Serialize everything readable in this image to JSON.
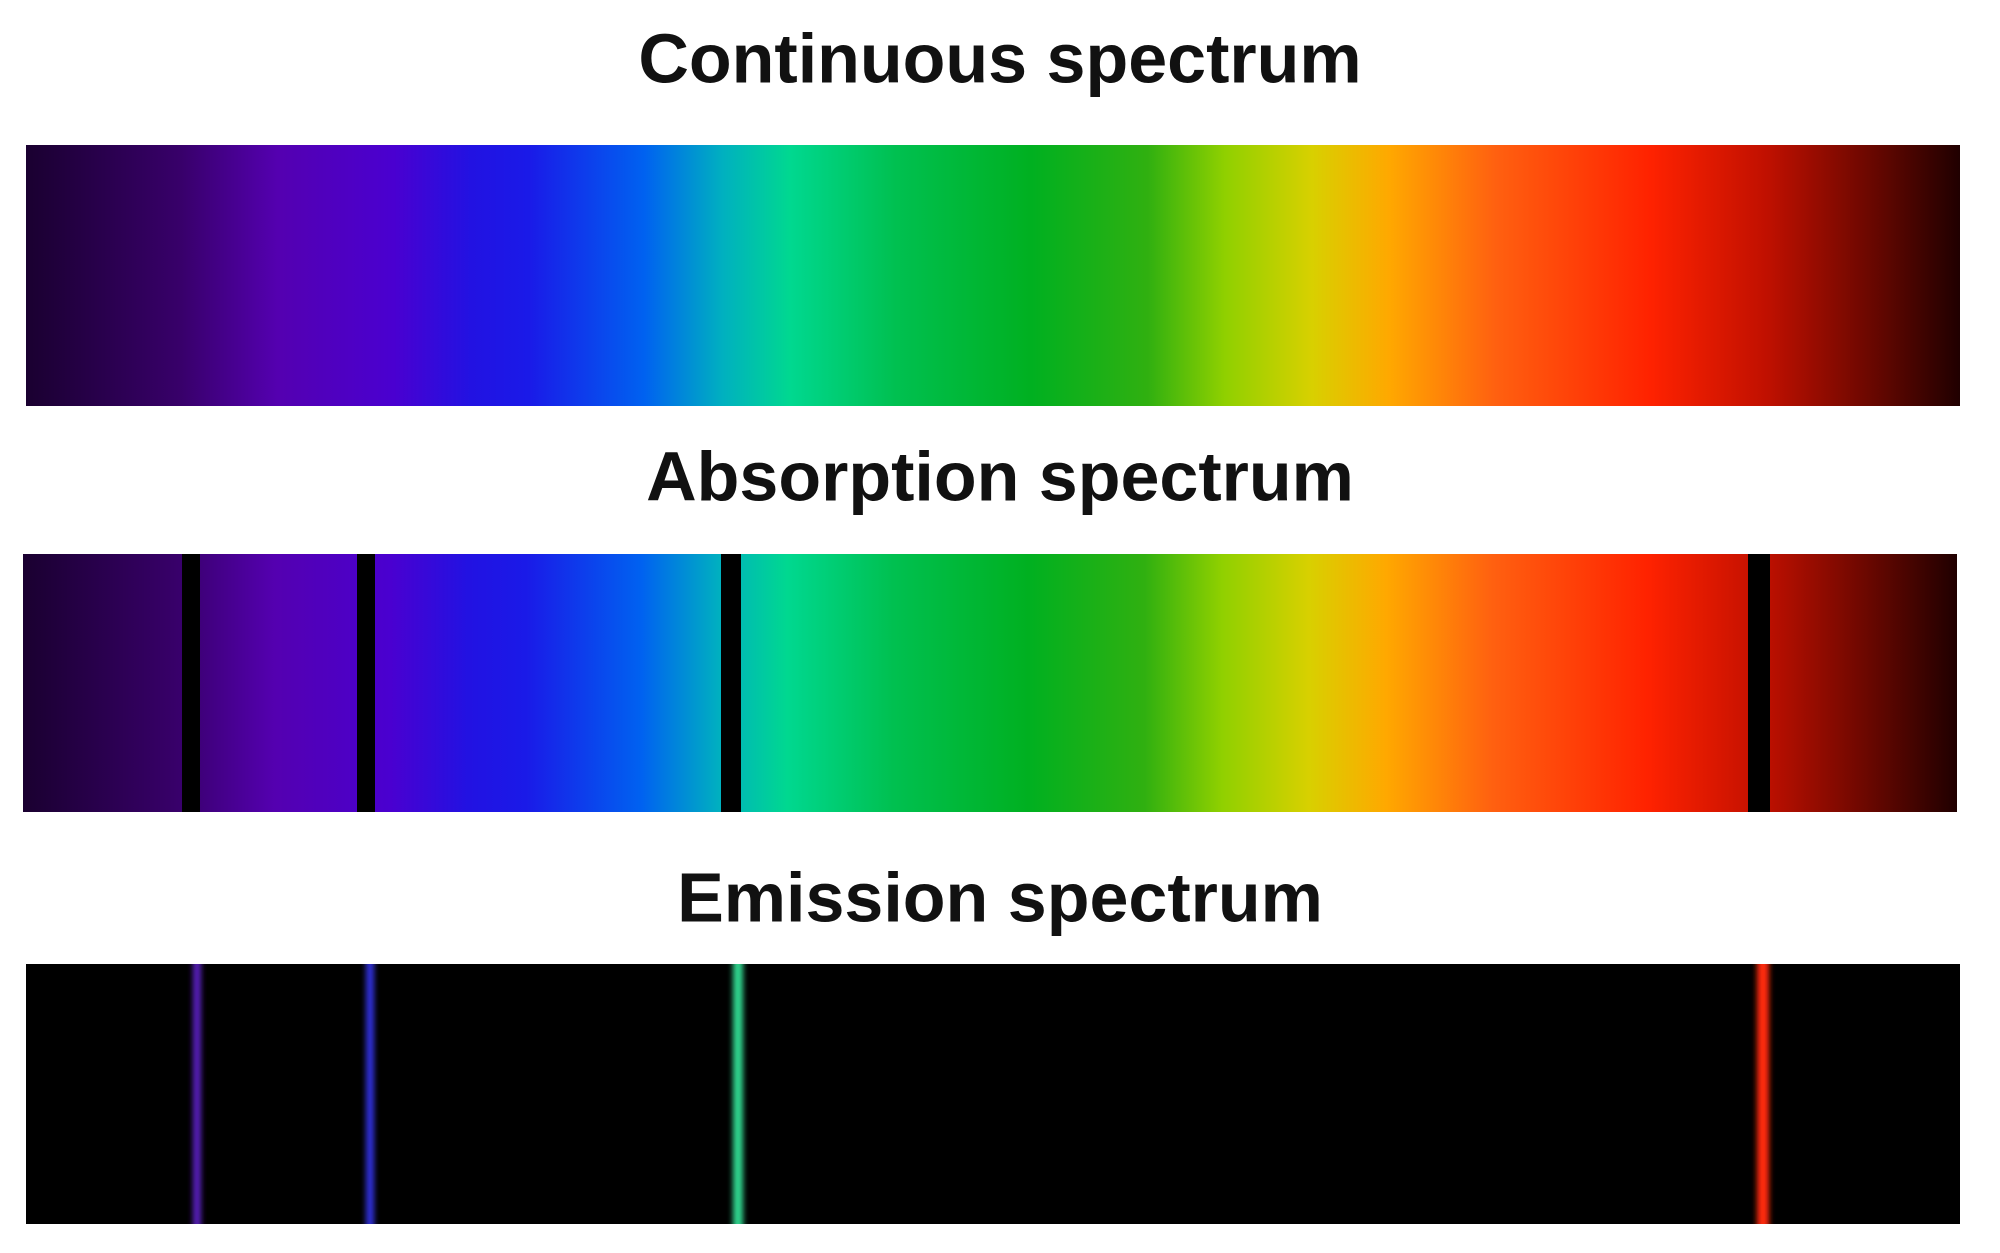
{
  "panels": [
    {
      "title": "Continuous spectrum"
    },
    {
      "title": "Absorption spectrum"
    },
    {
      "title": "Emission spectrum"
    }
  ]
}
